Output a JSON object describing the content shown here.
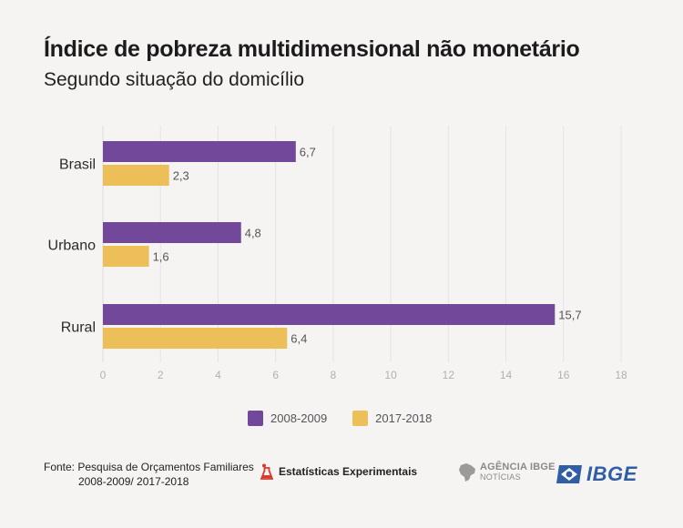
{
  "header": {
    "title": "Índice de pobreza multidimensional não monetário",
    "subtitle": "Segundo situação do domicílio"
  },
  "chart_data": {
    "type": "bar",
    "orientation": "horizontal",
    "categories": [
      "Brasil",
      "Urbano",
      "Rural"
    ],
    "series": [
      {
        "name": "2008-2009",
        "values": [
          6.7,
          4.8,
          15.7
        ],
        "labels": [
          "6,7",
          "4,8",
          "15,7"
        ],
        "color": "#71489a"
      },
      {
        "name": "2017-2018",
        "values": [
          2.3,
          1.6,
          6.4
        ],
        "labels": [
          "2,3",
          "1,6",
          "6,4"
        ],
        "color": "#ecbf58"
      }
    ],
    "xlim": [
      0,
      18
    ],
    "xticks": [
      0,
      2,
      4,
      6,
      8,
      10,
      12,
      14,
      16,
      18
    ],
    "xtick_labels": [
      "0",
      "2",
      "4",
      "6",
      "8",
      "10",
      "12",
      "14",
      "16",
      "18"
    ],
    "grid": true,
    "legend": "bottom"
  },
  "legend": {
    "items": [
      {
        "label": "2008-2009",
        "color": "#71489a"
      },
      {
        "label": "2017-2018",
        "color": "#ecbf58"
      }
    ]
  },
  "footer": {
    "source_line1": "Fonte: Pesquisa de Orçamentos Familiares",
    "source_line2": "2008-2009/ 2017-2018",
    "estatisticas": "Estatísticas Experimentais",
    "agencia_main": "AGÊNCIA IBGE",
    "agencia_sub": "NOTÍCIAS",
    "ibge": "IBGE"
  },
  "icons": {
    "estatisticas": "flask-icon",
    "agencia": "brazil-map-icon",
    "ibge": "brazil-flag-icon"
  }
}
